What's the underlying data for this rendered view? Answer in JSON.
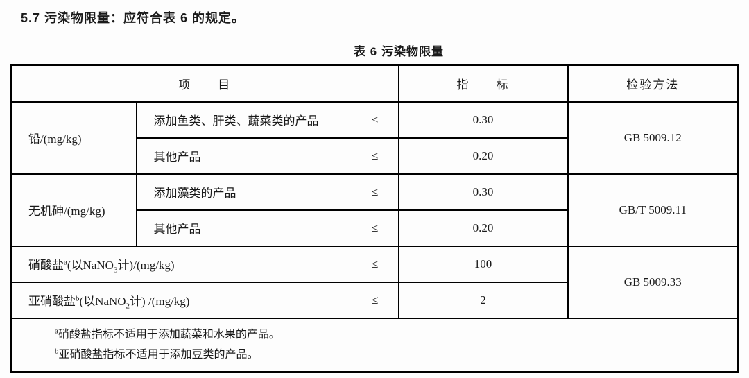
{
  "page": {
    "background": "#fdfdfd",
    "text_color": "#1a1a1a",
    "border_color": "#000000"
  },
  "heading": "5.7 污染物限量：应符合表 6 的规定。",
  "table": {
    "caption": "表 6 污染物限量",
    "le_symbol": "≤",
    "columns": {
      "item": "项　　目",
      "index": "指　　标",
      "method": "检验方法"
    },
    "groups": [
      {
        "name": "铅/(mg/kg)",
        "method": "GB 5009.12",
        "rows": [
          {
            "item": "添加鱼类、肝类、蔬菜类的产品",
            "value": "0.30"
          },
          {
            "item": "其他产品",
            "value": "0.20"
          }
        ]
      },
      {
        "name": "无机砷/(mg/kg)",
        "method": "GB/T 5009.11",
        "rows": [
          {
            "item": "添加藻类的产品",
            "value": "0.30"
          },
          {
            "item": "其他产品",
            "value": "0.20"
          }
        ]
      }
    ],
    "single_rows": [
      {
        "pre": "硝酸盐",
        "sup": "a",
        "mid": "(以NaNO",
        "sub": "3",
        "post": "计)/(mg/kg)",
        "value": "100",
        "method": "GB 5009.33"
      },
      {
        "pre": "亚硝酸盐",
        "sup": "b",
        "mid": "(以NaNO",
        "sub": "2",
        "post": "计) /(mg/kg)",
        "value": "2"
      }
    ],
    "footnotes": [
      {
        "sup": "a",
        "text": "硝酸盐指标不适用于添加蔬菜和水果的产品。"
      },
      {
        "sup": "b",
        "text": "亚硝酸盐指标不适用于添加豆类的产品。"
      }
    ]
  }
}
